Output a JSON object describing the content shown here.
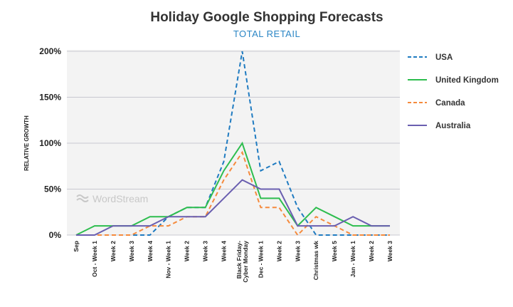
{
  "title": "Holiday Google Shopping Forecasts",
  "subtitle": "TOTAL RETAIL",
  "watermark": "WordStream",
  "chart_data": {
    "type": "line",
    "title": "Holiday Google Shopping Forecasts",
    "subtitle": "TOTAL RETAIL",
    "ylabel": "RELATIVE GROWTH",
    "xlabel": "",
    "ylim": [
      0,
      200
    ],
    "yticks": [
      "0%",
      "50%",
      "100%",
      "150%",
      "200%"
    ],
    "grid": true,
    "legend": "right",
    "categories": [
      "Sep",
      "Oct - Week 1",
      "Week 2",
      "Week 3",
      "Week 4",
      "Nov - Week  1",
      "Week 2",
      "Week 3",
      "Week 4",
      "Black Friday-\nCyber Monday",
      "Dec - Week 1",
      "Week 2",
      "Week 3",
      "Christmas wk",
      "Week 5",
      "Jan - Week 1",
      "Week 2",
      "Week 3"
    ],
    "series": [
      {
        "name": "USA",
        "color": "#1f7bc1",
        "dashed": true,
        "values": [
          0,
          0,
          0,
          0,
          0,
          20,
          30,
          30,
          80,
          200,
          70,
          80,
          30,
          0,
          0,
          0,
          0,
          0
        ]
      },
      {
        "name": "United Kingdom",
        "color": "#2dbd4e",
        "dashed": false,
        "values": [
          0,
          10,
          10,
          10,
          20,
          20,
          30,
          30,
          70,
          100,
          40,
          40,
          10,
          30,
          20,
          10,
          10,
          10
        ]
      },
      {
        "name": "Canada",
        "color": "#f58a3c",
        "dashed": true,
        "values": [
          0,
          0,
          0,
          0,
          10,
          10,
          20,
          20,
          60,
          90,
          30,
          30,
          0,
          20,
          10,
          0,
          0,
          0
        ]
      },
      {
        "name": "Australia",
        "color": "#6a5fb0",
        "dashed": false,
        "values": [
          0,
          0,
          10,
          10,
          10,
          20,
          20,
          20,
          40,
          60,
          50,
          50,
          10,
          10,
          10,
          20,
          10,
          10
        ]
      }
    ]
  }
}
